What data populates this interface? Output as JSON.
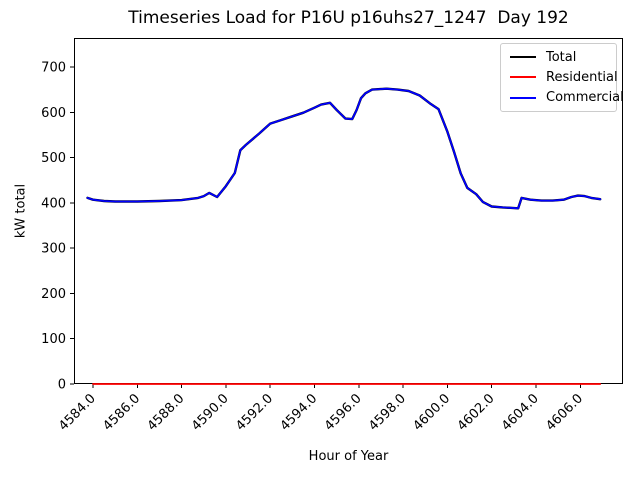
{
  "chart_data": {
    "type": "line",
    "title": "Timeseries Load for P16U p16uhs27_1247  Day 192",
    "xlabel": "Hour of Year",
    "ylabel": "kW total",
    "xlim": [
      4583.14,
      4607.93
    ],
    "ylim": [
      0,
      764
    ],
    "grid": false,
    "xticks": {
      "values": [
        4584,
        4586,
        4588,
        4590,
        4592,
        4594,
        4596,
        4598,
        4600,
        4602,
        4604,
        4606
      ],
      "labels": [
        "4584.0",
        "4586.0",
        "4588.0",
        "4590.0",
        "4592.0",
        "4594.0",
        "4596.0",
        "4598.0",
        "4600.0",
        "4602.0",
        "4604.0",
        "4606.0"
      ],
      "rotation": 45
    },
    "yticks": {
      "values": [
        0,
        100,
        200,
        300,
        400,
        500,
        600,
        700
      ],
      "labels": [
        "0",
        "100",
        "200",
        "300",
        "400",
        "500",
        "600",
        "700"
      ]
    },
    "legend": {
      "position": "upper right",
      "entries": [
        {
          "label": "Total",
          "color": "#000000"
        },
        {
          "label": "Residential",
          "color": "#ff0000"
        },
        {
          "label": "Commercial",
          "color": "#0000ff"
        }
      ]
    },
    "series": [
      {
        "name": "Total",
        "color": "#000000",
        "x": [
          4583.75,
          4584,
          4584.5,
          4585,
          4586,
          4587,
          4588,
          4588.75,
          4589,
          4589.25,
          4589.6,
          4590,
          4590.4,
          4590.65,
          4590.9,
          4591.5,
          4592,
          4592.5,
          4593,
          4593.5,
          4594,
          4594.3,
          4594.7,
          4595,
          4595.4,
          4595.7,
          4595.9,
          4596.1,
          4596.3,
          4596.6,
          4597.25,
          4597.75,
          4598.25,
          4598.75,
          4599.2,
          4599.6,
          4600,
          4600.3,
          4600.6,
          4600.9,
          4601.3,
          4601.6,
          4602,
          4602.5,
          4603.2,
          4603.35,
          4603.75,
          4604.25,
          4604.75,
          4605.25,
          4605.6,
          4605.9,
          4606.2,
          4606.5,
          4606.9
        ],
        "y": [
          411,
          407,
          404,
          403,
          403,
          404,
          406,
          411,
          415,
          422,
          413,
          437,
          466,
          516,
          528,
          553,
          575,
          583,
          591,
          599,
          610,
          617,
          621,
          605,
          586,
          585,
          605,
          631,
          642,
          650,
          652,
          650,
          647,
          637,
          620,
          607,
          557,
          513,
          465,
          433,
          419,
          402,
          392,
          390,
          388,
          411,
          407,
          405,
          405,
          407,
          413,
          416,
          415,
          411,
          408
        ]
      },
      {
        "name": "Residential",
        "color": "#ff0000",
        "x": [
          4584,
          4606.9
        ],
        "y": [
          0,
          0
        ]
      },
      {
        "name": "Commercial",
        "color": "#0000ff",
        "x": [
          4583.75,
          4584,
          4584.5,
          4585,
          4586,
          4587,
          4588,
          4588.75,
          4589,
          4589.25,
          4589.6,
          4590,
          4590.4,
          4590.65,
          4590.9,
          4591.5,
          4592,
          4592.5,
          4593,
          4593.5,
          4594,
          4594.3,
          4594.7,
          4595,
          4595.4,
          4595.7,
          4595.9,
          4596.1,
          4596.3,
          4596.6,
          4597.25,
          4597.75,
          4598.25,
          4598.75,
          4599.2,
          4599.6,
          4600,
          4600.3,
          4600.6,
          4600.9,
          4601.3,
          4601.6,
          4602,
          4602.5,
          4603.2,
          4603.35,
          4603.75,
          4604.25,
          4604.75,
          4605.25,
          4605.6,
          4605.9,
          4606.2,
          4606.5,
          4606.9
        ],
        "y": [
          411,
          407,
          404,
          403,
          403,
          404,
          406,
          411,
          415,
          422,
          413,
          437,
          466,
          516,
          528,
          553,
          575,
          583,
          591,
          599,
          610,
          617,
          621,
          605,
          586,
          585,
          605,
          631,
          642,
          650,
          652,
          650,
          647,
          637,
          620,
          607,
          557,
          513,
          465,
          433,
          419,
          402,
          392,
          390,
          388,
          411,
          407,
          405,
          405,
          407,
          413,
          416,
          415,
          411,
          408
        ]
      }
    ]
  }
}
